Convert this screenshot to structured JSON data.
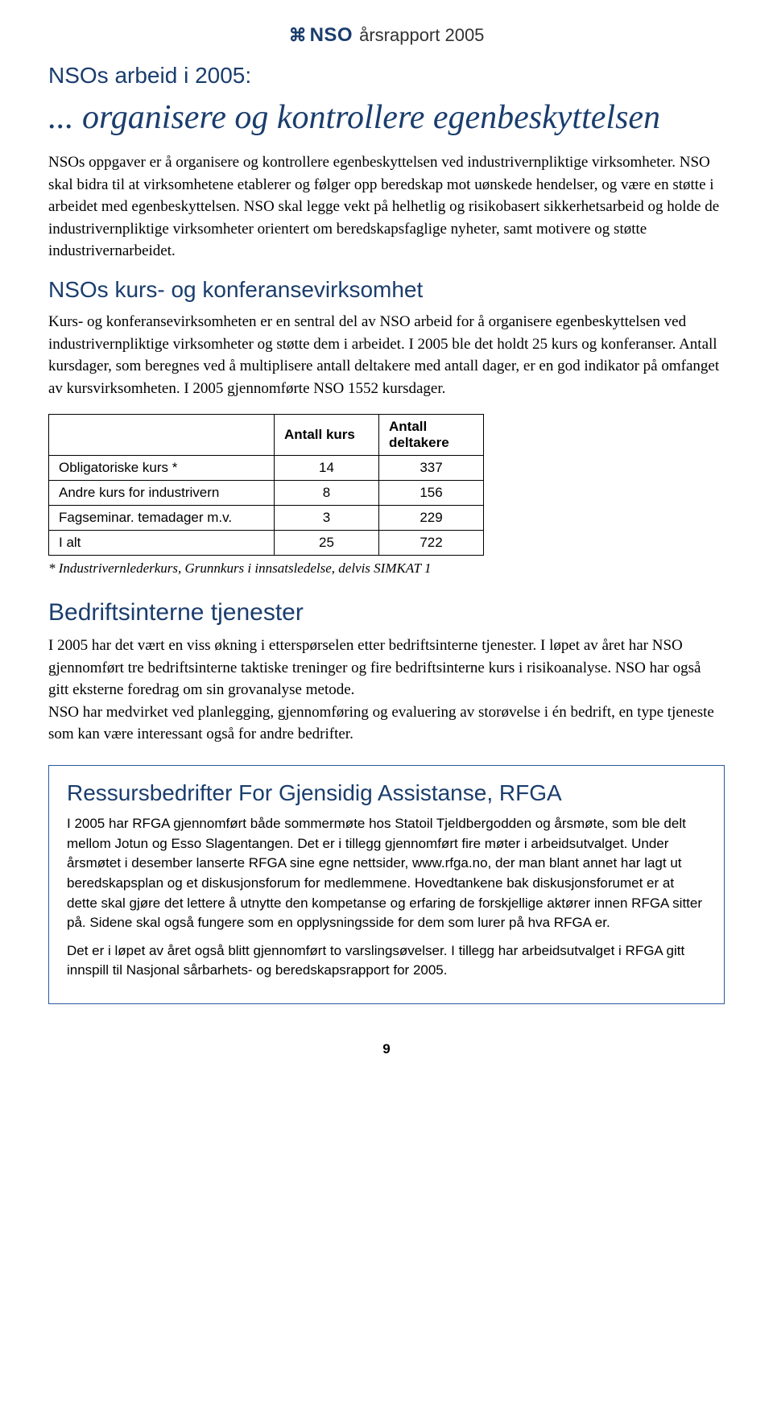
{
  "header": {
    "logo_text": "NSO",
    "title": "årsrapport 2005"
  },
  "main_heading": "NSOs arbeid i 2005:",
  "italic_title": "... organisere og kontrollere egenbeskyttelsen",
  "intro_paragraph": "NSOs oppgaver er å organisere og kontrollere egenbeskyttelsen ved industrivernpliktige virksomheter. NSO skal bidra til at virksomhetene etablerer og følger opp beredskap mot uønskede hendelser, og være en støtte i arbeidet med egenbeskyttelsen. NSO skal legge vekt på helhetlig og risikobasert sikkerhetsarbeid og holde de industrivernpliktige virksomheter orientert om beredskapsfaglige nyheter, samt motivere og støtte industrivernarbeidet.",
  "kurs_heading": "NSOs kurs- og konferansevirksomhet",
  "kurs_paragraph": "Kurs- og konferansevirksomheten er en sentral del av NSO arbeid for å organisere egenbeskyttelsen ved industrivernpliktige virksomheter og støtte dem i arbeidet. I 2005 ble det holdt 25 kurs og konferanser. Antall kursdager, som beregnes ved å multiplisere antall deltakere med antall dager, er en god indikator på omfanget av kursvirksomheten. I 2005 gjennomførte NSO 1552 kursdager.",
  "table": {
    "type": "table",
    "border_color": "#000000",
    "font_size": 17,
    "columns": [
      "",
      "Antall kurs",
      "Antall deltakere"
    ],
    "rows": [
      [
        "Obligatoriske kurs *",
        "14",
        "337"
      ],
      [
        "Andre kurs for industrivern",
        "8",
        "156"
      ],
      [
        "Fagseminar. temadager m.v.",
        "3",
        "229"
      ],
      [
        "I alt",
        "25",
        "722"
      ]
    ]
  },
  "table_footnote": "* Industrivernlederkurs, Grunnkurs i innsatsledelse, delvis SIMKAT 1",
  "bedrift_heading": "Bedriftsinterne tjenester",
  "bedrift_paragraph": "I 2005 har det vært en viss økning i etterspørselen etter bedriftsinterne tjenester. I løpet av året har NSO gjennomført tre bedriftsinterne taktiske treninger og fire bedriftsinterne kurs i risikoanalyse. NSO har også gitt eksterne foredrag om sin grovanalyse metode.\nNSO har medvirket ved planlegging, gjennomføring og evaluering av storøvelse i én bedrift, en type tjeneste som kan være interessant også for andre bedrifter.",
  "box": {
    "border_color": "#2b5a9e",
    "heading": "Ressursbedrifter For Gjensidig Assistanse, RFGA",
    "para1": "I 2005 har RFGA gjennomført både sommermøte hos Statoil Tjeldbergodden og årsmøte, som ble delt mellom Jotun og Esso Slagentangen. Det er i tillegg gjennomført fire møter i arbeidsutvalget. Under årsmøtet i desember lanserte RFGA sine egne nettsider, www.rfga.no, der man blant annet har lagt ut beredskapsplan og et diskusjonsforum for medlemmene. Hovedtankene bak diskusjonsforumet er at dette skal gjøre det lettere å utnytte den kompetanse og erfaring de forskjellige aktører innen RFGA sitter på. Sidene skal også fungere som en opplysningsside for dem som lurer på hva RFGA er.",
    "para2": "Det er i løpet av året også blitt gjennomført to varslingsøvelser. I tillegg har arbeidsutvalget i RFGA gitt innspill til Nasjonal sårbarhets- og beredskapsrapport for 2005."
  },
  "page_number": "9",
  "colors": {
    "heading_color": "#1a3d6d",
    "body_text_color": "#000000",
    "background": "#ffffff"
  }
}
